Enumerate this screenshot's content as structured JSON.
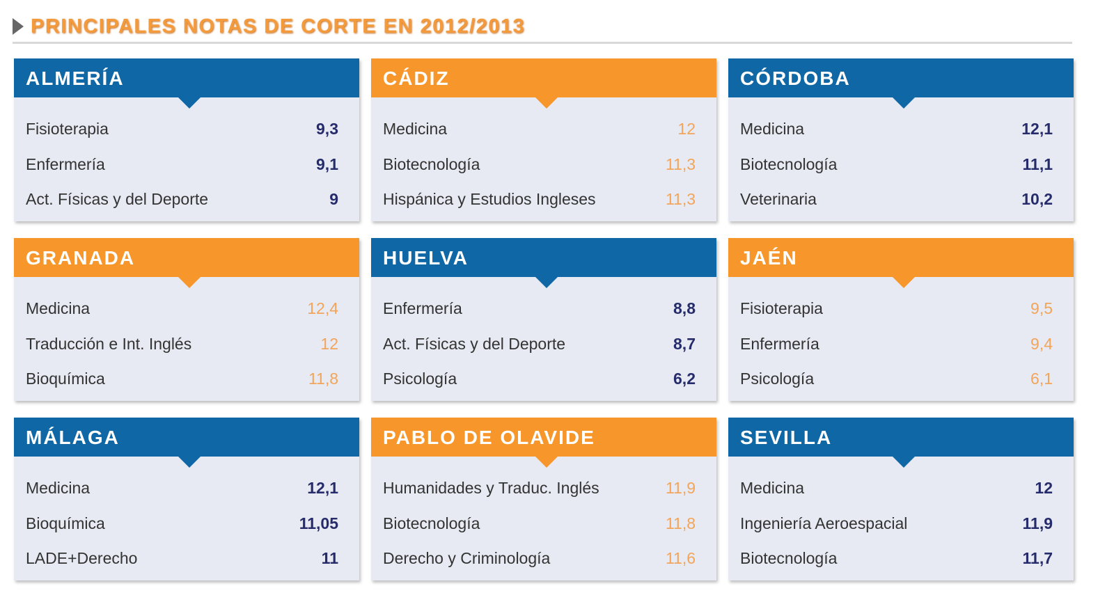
{
  "title": "PRINCIPALES NOTAS DE CORTE EN 2012/2013",
  "universities": [
    {
      "name": "ALMERÍA",
      "color": "blue",
      "rows": [
        {
          "degree": "Fisioterapia",
          "score": "9,3"
        },
        {
          "degree": "Enfermería",
          "score": "9,1"
        },
        {
          "degree": "Act. Físicas y del Deporte",
          "score": "9"
        }
      ]
    },
    {
      "name": "CÁDIZ",
      "color": "orange",
      "rows": [
        {
          "degree": "Medicina",
          "score": "12"
        },
        {
          "degree": "Biotecnología",
          "score": "11,3"
        },
        {
          "degree": "Hispánica y Estudios Ingleses",
          "score": "11,3"
        }
      ]
    },
    {
      "name": "CÓRDOBA",
      "color": "blue",
      "rows": [
        {
          "degree": "Medicina",
          "score": "12,1"
        },
        {
          "degree": "Biotecnología",
          "score": "11,1"
        },
        {
          "degree": "Veterinaria",
          "score": "10,2"
        }
      ]
    },
    {
      "name": "GRANADA",
      "color": "orange",
      "rows": [
        {
          "degree": "Medicina",
          "score": "12,4"
        },
        {
          "degree": "Traducción e Int. Inglés",
          "score": "12"
        },
        {
          "degree": "Bioquímica",
          "score": "11,8"
        }
      ]
    },
    {
      "name": "HUELVA",
      "color": "blue",
      "rows": [
        {
          "degree": "Enfermería",
          "score": "8,8"
        },
        {
          "degree": "Act. Físicas y del Deporte",
          "score": "8,7"
        },
        {
          "degree": "Psicología",
          "score": "6,2"
        }
      ]
    },
    {
      "name": "JAÉN",
      "color": "orange",
      "rows": [
        {
          "degree": "Fisioterapia",
          "score": "9,5"
        },
        {
          "degree": "Enfermería",
          "score": "9,4"
        },
        {
          "degree": "Psicología",
          "score": "6,1"
        }
      ]
    },
    {
      "name": "MÁLAGA",
      "color": "blue",
      "rows": [
        {
          "degree": "Medicina",
          "score": "12,1"
        },
        {
          "degree": "Bioquímica",
          "score": "11,05"
        },
        {
          "degree": "LADE+Derecho",
          "score": "11"
        }
      ]
    },
    {
      "name": "PABLO DE OLAVIDE",
      "color": "orange",
      "rows": [
        {
          "degree": "Humanidades y Traduc. Inglés",
          "score": "11,9"
        },
        {
          "degree": "Biotecnología",
          "score": "11,8"
        },
        {
          "degree": "Derecho y Criminología",
          "score": "11,6"
        }
      ]
    },
    {
      "name": "SEVILLA",
      "color": "blue",
      "rows": [
        {
          "degree": "Medicina",
          "score": "12"
        },
        {
          "degree": "Ingeniería Aeroespacial",
          "score": "11,9"
        },
        {
          "degree": "Biotecnología",
          "score": "11,7"
        }
      ]
    }
  ],
  "colors": {
    "blue": "#0f67a6",
    "orange": "#f7962a",
    "navy_text": "#262c6b",
    "orange_text": "#f2a55a"
  }
}
